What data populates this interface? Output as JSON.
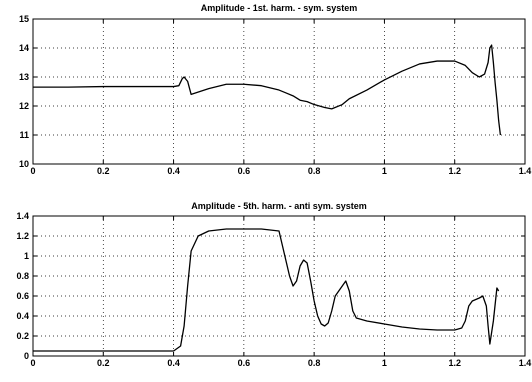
{
  "chart_data": [
    {
      "type": "line",
      "title": "Amplitude - 1st. harm. - sym. system",
      "xlabel": "",
      "ylabel": "",
      "xlim": [
        0,
        1.4
      ],
      "ylim": [
        10,
        15
      ],
      "xticks": [
        0,
        0.2,
        0.4,
        0.6,
        0.8,
        1,
        1.2,
        1.4
      ],
      "xtick_labels": [
        "0",
        "0.2",
        "0.4",
        "0.6",
        "0.8",
        "1",
        "1.2",
        "1.4"
      ],
      "yticks": [
        10,
        11,
        12,
        13,
        14,
        15
      ],
      "ytick_labels": [
        "10",
        "11",
        "12",
        "13",
        "14",
        "15"
      ],
      "grid": true,
      "series": [
        {
          "x": [
            0,
            0.1,
            0.2,
            0.3,
            0.35,
            0.4,
            0.415,
            0.425,
            0.43,
            0.44,
            0.45,
            0.5,
            0.55,
            0.6,
            0.65,
            0.7,
            0.72,
            0.74,
            0.76,
            0.78,
            0.8,
            0.83,
            0.85,
            0.88,
            0.9,
            0.95,
            1.0,
            1.05,
            1.1,
            1.15,
            1.2,
            1.23,
            1.25,
            1.27,
            1.285,
            1.295,
            1.3,
            1.305,
            1.31,
            1.315,
            1.32,
            1.325,
            1.33
          ],
          "y": [
            12.65,
            12.65,
            12.67,
            12.67,
            12.67,
            12.67,
            12.7,
            12.95,
            13.0,
            12.85,
            12.4,
            12.6,
            12.75,
            12.75,
            12.7,
            12.55,
            12.45,
            12.35,
            12.2,
            12.15,
            12.05,
            11.95,
            11.9,
            12.05,
            12.25,
            12.55,
            12.9,
            13.2,
            13.45,
            13.55,
            13.55,
            13.4,
            13.15,
            13.0,
            13.1,
            13.5,
            14.0,
            14.1,
            13.5,
            12.8,
            12.2,
            11.5,
            11.0
          ]
        }
      ]
    },
    {
      "type": "line",
      "title": "Amplitude - 5th. harm. - anti sym. system",
      "xlabel": "",
      "ylabel": "",
      "xlim": [
        0,
        1.4
      ],
      "ylim": [
        0,
        1.4
      ],
      "xticks": [
        0,
        0.2,
        0.4,
        0.6,
        0.8,
        1,
        1.2,
        1.4
      ],
      "xtick_labels": [
        "0",
        "0.2",
        "0.4",
        "0.6",
        "0.8",
        "1",
        "1.2",
        "1.4"
      ],
      "yticks": [
        0,
        0.2,
        0.4,
        0.6,
        0.8,
        1,
        1.2,
        1.4
      ],
      "ytick_labels": [
        "0",
        "0.2",
        "0.4",
        "0.6",
        "0.8",
        "1",
        "1.2",
        "1.4"
      ],
      "grid": true,
      "series": [
        {
          "x": [
            0,
            0.1,
            0.2,
            0.3,
            0.4,
            0.42,
            0.43,
            0.44,
            0.45,
            0.47,
            0.5,
            0.55,
            0.6,
            0.65,
            0.7,
            0.71,
            0.72,
            0.73,
            0.74,
            0.75,
            0.76,
            0.77,
            0.78,
            0.79,
            0.8,
            0.81,
            0.82,
            0.83,
            0.84,
            0.85,
            0.86,
            0.87,
            0.88,
            0.89,
            0.9,
            0.91,
            0.92,
            0.93,
            0.95,
            1.0,
            1.05,
            1.1,
            1.15,
            1.2,
            1.22,
            1.23,
            1.24,
            1.25,
            1.27,
            1.28,
            1.29,
            1.295,
            1.3,
            1.31,
            1.32,
            1.325
          ],
          "y": [
            0.05,
            0.05,
            0.05,
            0.05,
            0.05,
            0.1,
            0.3,
            0.7,
            1.05,
            1.2,
            1.25,
            1.27,
            1.27,
            1.27,
            1.25,
            1.1,
            0.95,
            0.8,
            0.7,
            0.75,
            0.9,
            0.96,
            0.93,
            0.75,
            0.55,
            0.4,
            0.32,
            0.3,
            0.33,
            0.45,
            0.6,
            0.65,
            0.7,
            0.75,
            0.65,
            0.45,
            0.38,
            0.37,
            0.35,
            0.32,
            0.29,
            0.27,
            0.26,
            0.26,
            0.28,
            0.35,
            0.5,
            0.55,
            0.58,
            0.6,
            0.5,
            0.3,
            0.12,
            0.35,
            0.68,
            0.65
          ]
        }
      ]
    }
  ]
}
